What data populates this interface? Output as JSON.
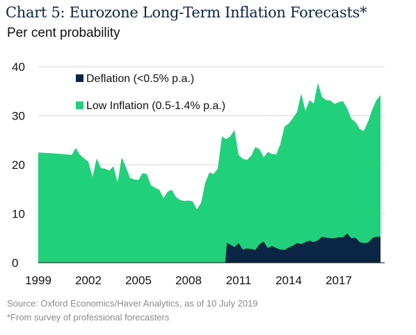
{
  "title": "Chart 5: Eurozone Long-Term Inflation Forecasts*",
  "subtitle": "Per cent probability",
  "footnotes": {
    "source": "Source: Oxford Economics/Haver Analytics, as of 10 July 2019",
    "note": "*From survey of professional forecasters"
  },
  "chart_data": {
    "type": "area",
    "title": "Chart 5: Eurozone Long-Term Inflation Forecasts*",
    "ylabel": "Per cent probability",
    "xlim": [
      1999.0,
      2019.75
    ],
    "ylim": [
      0,
      40
    ],
    "yticks": [
      0,
      10,
      20,
      30,
      40
    ],
    "xticks": [
      "1999",
      "2002",
      "2005",
      "2008",
      "2011",
      "2014",
      "2017"
    ],
    "grid": "horizontal",
    "legend": "top-left",
    "stacked": true,
    "series": [
      {
        "name": "Deflation (<0.5% p.a.)",
        "color": "#0b2545",
        "points": [
          [
            1999.0,
            0
          ],
          [
            2010.2,
            0
          ],
          [
            2010.3,
            4.1
          ],
          [
            2010.5,
            3.7
          ],
          [
            2010.75,
            3.2
          ],
          [
            2011.0,
            4.0
          ],
          [
            2011.25,
            2.7
          ],
          [
            2011.5,
            2.9
          ],
          [
            2011.75,
            2.8
          ],
          [
            2012.0,
            2.6
          ],
          [
            2012.25,
            3.8
          ],
          [
            2012.5,
            4.3
          ],
          [
            2012.75,
            3.0
          ],
          [
            2013.0,
            3.4
          ],
          [
            2013.25,
            3.0
          ],
          [
            2013.5,
            2.7
          ],
          [
            2013.75,
            2.6
          ],
          [
            2014.0,
            3.1
          ],
          [
            2014.25,
            3.5
          ],
          [
            2014.5,
            4.0
          ],
          [
            2014.75,
            3.8
          ],
          [
            2015.0,
            4.2
          ],
          [
            2015.25,
            4.5
          ],
          [
            2015.5,
            4.2
          ],
          [
            2015.75,
            4.6
          ],
          [
            2016.0,
            5.3
          ],
          [
            2016.25,
            5.1
          ],
          [
            2016.5,
            5.0
          ],
          [
            2016.75,
            5.0
          ],
          [
            2017.0,
            5.2
          ],
          [
            2017.25,
            5.2
          ],
          [
            2017.5,
            6.0
          ],
          [
            2017.75,
            5.0
          ],
          [
            2018.0,
            5.1
          ],
          [
            2018.25,
            4.2
          ],
          [
            2018.5,
            4.0
          ],
          [
            2018.75,
            4.1
          ],
          [
            2019.0,
            5.0
          ],
          [
            2019.25,
            5.3
          ],
          [
            2019.5,
            5.3
          ]
        ]
      },
      {
        "name": "Low Inflation (0.5-1.4% p.a.)",
        "color": "#21d07a",
        "points": [
          [
            1999.0,
            22.5
          ],
          [
            2000.0,
            22.3
          ],
          [
            2001.0,
            22.0
          ],
          [
            2001.25,
            23.4
          ],
          [
            2001.5,
            22.0
          ],
          [
            2001.75,
            21.3
          ],
          [
            2002.0,
            20.6
          ],
          [
            2002.25,
            17.5
          ],
          [
            2002.5,
            21.3
          ],
          [
            2002.75,
            19.3
          ],
          [
            2003.0,
            19.2
          ],
          [
            2003.25,
            18.8
          ],
          [
            2003.5,
            19.7
          ],
          [
            2003.75,
            16.4
          ],
          [
            2004.0,
            21.5
          ],
          [
            2004.25,
            19.5
          ],
          [
            2004.5,
            17.3
          ],
          [
            2004.75,
            17.0
          ],
          [
            2005.0,
            16.9
          ],
          [
            2005.25,
            18.3
          ],
          [
            2005.5,
            18.1
          ],
          [
            2005.75,
            15.8
          ],
          [
            2006.0,
            15.3
          ],
          [
            2006.25,
            14.9
          ],
          [
            2006.5,
            13.2
          ],
          [
            2006.75,
            14.5
          ],
          [
            2007.0,
            14.9
          ],
          [
            2007.25,
            13.4
          ],
          [
            2007.5,
            12.8
          ],
          [
            2007.75,
            12.6
          ],
          [
            2008.0,
            12.7
          ],
          [
            2008.25,
            12.5
          ],
          [
            2008.5,
            10.9
          ],
          [
            2008.75,
            12.2
          ],
          [
            2009.0,
            16.3
          ],
          [
            2009.25,
            18.4
          ],
          [
            2009.5,
            18.1
          ],
          [
            2009.75,
            19.2
          ],
          [
            2010.0,
            25.8
          ],
          [
            2010.25,
            25.2
          ],
          [
            2010.5,
            25.8
          ],
          [
            2010.75,
            27.1
          ],
          [
            2011.0,
            22.0
          ],
          [
            2011.25,
            21.2
          ],
          [
            2011.5,
            21.0
          ],
          [
            2011.75,
            21.8
          ],
          [
            2012.0,
            23.6
          ],
          [
            2012.25,
            23.2
          ],
          [
            2012.5,
            21.5
          ],
          [
            2012.75,
            22.6
          ],
          [
            2013.0,
            22.2
          ],
          [
            2013.25,
            22.1
          ],
          [
            2013.5,
            24.2
          ],
          [
            2013.75,
            27.8
          ],
          [
            2014.0,
            28.4
          ],
          [
            2014.25,
            29.5
          ],
          [
            2014.5,
            30.8
          ],
          [
            2014.75,
            34.5
          ],
          [
            2015.0,
            31.0
          ],
          [
            2015.25,
            33.2
          ],
          [
            2015.5,
            32.5
          ],
          [
            2015.75,
            36.7
          ],
          [
            2016.0,
            33.8
          ],
          [
            2016.25,
            33.2
          ],
          [
            2016.5,
            33.1
          ],
          [
            2016.75,
            32.4
          ],
          [
            2017.0,
            32.8
          ],
          [
            2017.25,
            33.0
          ],
          [
            2017.5,
            31.5
          ],
          [
            2017.75,
            29.4
          ],
          [
            2018.0,
            28.7
          ],
          [
            2018.25,
            27.3
          ],
          [
            2018.5,
            26.9
          ],
          [
            2018.75,
            28.8
          ],
          [
            2019.0,
            31.2
          ],
          [
            2019.25,
            33.2
          ],
          [
            2019.5,
            34.2
          ]
        ]
      }
    ]
  }
}
